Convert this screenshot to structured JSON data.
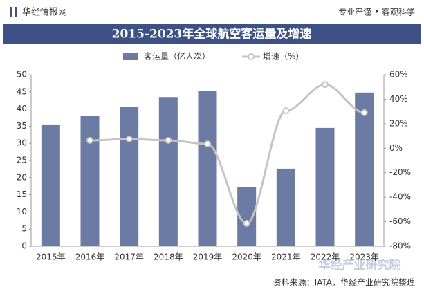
{
  "header": {
    "brand": "华经情报网",
    "slogan": "专业严谨 • 客观科学"
  },
  "chart_data": {
    "type": "bar_line",
    "title": "2015-2023年全球航空客运量及增速",
    "categories": [
      "2015年",
      "2016年",
      "2017年",
      "2018年",
      "2019年",
      "2020年",
      "2021年",
      "2022年",
      "2023年"
    ],
    "series": [
      {
        "name": "客运量（亿人次）",
        "type": "bar",
        "color": "#6b7ba4",
        "values": [
          35.3,
          37.9,
          40.7,
          43.5,
          45.2,
          17.3,
          22.6,
          34.5,
          44.8
        ]
      },
      {
        "name": "增速（%）",
        "type": "line",
        "axis": "y2",
        "color": "#c4c4c4",
        "values": [
          null,
          6.4,
          7.5,
          6.4,
          3.5,
          -61.4,
          30.6,
          52,
          29
        ]
      }
    ],
    "ylim": [
      0,
      50
    ],
    "yticks": [
      0,
      5,
      10,
      15,
      20,
      25,
      30,
      35,
      40,
      45,
      50
    ],
    "y2lim": [
      -80,
      60
    ],
    "y2ticks": [
      {
        "value": -80,
        "label": "-80%"
      },
      {
        "value": -60,
        "label": "-60%"
      },
      {
        "value": -40,
        "label": "-40%"
      },
      {
        "value": -20,
        "label": "-20%"
      },
      {
        "value": 0,
        "label": "0%"
      },
      {
        "value": 20,
        "label": "20%"
      },
      {
        "value": 40,
        "label": "40%"
      },
      {
        "value": 60,
        "label": "60%"
      }
    ],
    "legend": "top",
    "source": "资料来源：IATA，华经产业研究院整理",
    "watermark": "华经产业研究院"
  }
}
